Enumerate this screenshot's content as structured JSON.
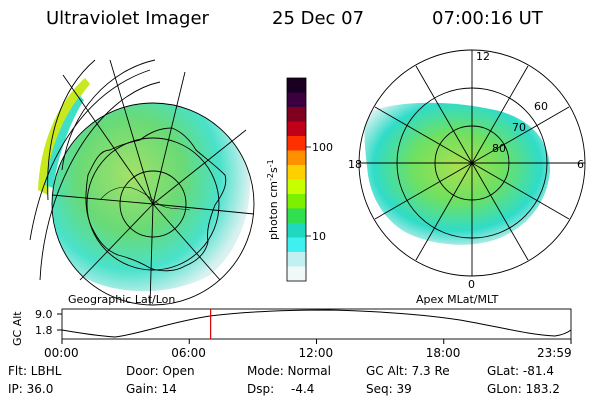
{
  "header": {
    "title": "Ultraviolet Imager",
    "date": "25 Dec 07",
    "time": "07:00:16 UT"
  },
  "left_panel": {
    "caption": "Geographic Lat/Lon"
  },
  "right_panel": {
    "caption": "Apex MLat/MLT",
    "mlt_labels": [
      "12",
      "18",
      "6",
      "0"
    ],
    "lat_labels": [
      "60",
      "70",
      "80"
    ]
  },
  "colorbar": {
    "ticks": [
      "100",
      "10"
    ],
    "unit_text": "photon cm",
    "unit_sup1": "-2",
    "unit_mid": "s",
    "unit_sup2": "-1",
    "scale": "log",
    "colors": [
      "#1a0020",
      "#3a0040",
      "#800020",
      "#c00018",
      "#ff3000",
      "#ff9000",
      "#ffd000",
      "#c8ff00",
      "#7cf000",
      "#30e050",
      "#20d8c0",
      "#40f0f0",
      "#c0f0f0",
      "#f0f8f8"
    ]
  },
  "orbit_plot": {
    "ylabel": "GC Alt",
    "yticks": [
      "9.0",
      "1.8"
    ],
    "xticks": [
      "00:00",
      "06:00",
      "12:00",
      "18:00",
      "23:59"
    ],
    "current_time_fraction": 0.292
  },
  "info": {
    "flt": "Flt: LBHL",
    "ip": "IP: 36.0",
    "door": "Door: Open",
    "gain": "Gain: 14",
    "mode": "Mode: Normal",
    "dsp_label": "Dsp:",
    "dsp_value": "-4.4",
    "gc_alt": "GC Alt: 7.3 Re",
    "seq": "Seq: 39",
    "glat": "GLat: -81.4",
    "glon": "GLon: 183.2"
  }
}
